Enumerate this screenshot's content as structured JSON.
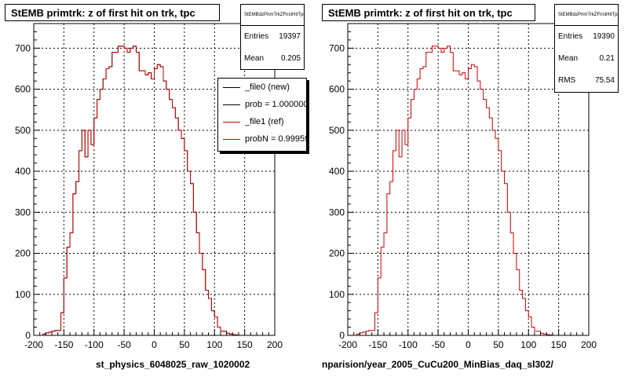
{
  "chart_data": [
    {
      "type": "line",
      "title": "StEMB primtrk: z of first hit on trk, tpc",
      "xlabel": "st_physics_6048025_raw_1020002",
      "ylabel": "",
      "xlim": [
        -200,
        200
      ],
      "ylim": [
        0,
        760
      ],
      "x_ticks": [
        -200,
        -150,
        -100,
        -50,
        0,
        50,
        100,
        150,
        200
      ],
      "y_ticks": [
        0,
        100,
        200,
        300,
        400,
        500,
        600,
        700
      ],
      "grid": true,
      "stats": {
        "name": "StEMBdzPrimTrkZFirstHitTpc",
        "entries_label": "Entries",
        "entries": "19397",
        "mean_label": "Mean",
        "mean": "0.205"
      },
      "legend": {
        "position": "top-right",
        "entries": [
          {
            "label": "_file0 (new)",
            "color": "#000000"
          },
          {
            "label": "prob = 1.000000",
            "color": "#000000"
          },
          {
            "label": "_file1 (ref)",
            "color": "#cc0000"
          },
          {
            "label": "probN = 0.999593",
            "color": "#cc0000"
          }
        ]
      },
      "bin_edges": [
        -185,
        -180,
        -175,
        -170,
        -165,
        -160,
        -155,
        -150,
        -145,
        -140,
        -135,
        -130,
        -125,
        -120,
        -115,
        -110,
        -105,
        -100,
        -95,
        -90,
        -85,
        -80,
        -75,
        -70,
        -65,
        -60,
        -55,
        -50,
        -45,
        -40,
        -35,
        -30,
        -25,
        -20,
        -15,
        -10,
        -5,
        0,
        5,
        10,
        15,
        20,
        25,
        30,
        35,
        40,
        45,
        50,
        55,
        60,
        65,
        70,
        75,
        80,
        85,
        90,
        95,
        100,
        105,
        110,
        115,
        120,
        125,
        130,
        135,
        140,
        145,
        150,
        155,
        160,
        165,
        170,
        175,
        180,
        185
      ],
      "series": [
        {
          "color": "#000000",
          "values": [
            3,
            6,
            8,
            10,
            12,
            12,
            55,
            140,
            215,
            250,
            345,
            375,
            450,
            500,
            435,
            500,
            465,
            530,
            575,
            600,
            625,
            650,
            655,
            690,
            690,
            705,
            705,
            700,
            690,
            700,
            705,
            690,
            645,
            645,
            635,
            640,
            625,
            650,
            660,
            655,
            620,
            600,
            575,
            555,
            530,
            500,
            480,
            450,
            400,
            370,
            300,
            250,
            200,
            160,
            110,
            90,
            60,
            45,
            20,
            10,
            10,
            5,
            3,
            2,
            1,
            0,
            0,
            0,
            0,
            0,
            0,
            0,
            0,
            0
          ]
        },
        {
          "color": "#cc0000",
          "values": [
            3,
            6,
            8,
            10,
            12,
            12,
            55,
            140,
            215,
            250,
            345,
            375,
            450,
            500,
            435,
            500,
            465,
            530,
            575,
            600,
            625,
            650,
            655,
            690,
            690,
            705,
            705,
            700,
            690,
            700,
            705,
            690,
            645,
            645,
            635,
            640,
            625,
            650,
            660,
            655,
            620,
            600,
            575,
            555,
            530,
            500,
            480,
            450,
            400,
            370,
            300,
            250,
            200,
            160,
            110,
            90,
            60,
            45,
            20,
            10,
            10,
            5,
            3,
            2,
            1,
            0,
            0,
            0,
            0,
            0,
            0,
            0,
            0,
            0
          ]
        }
      ]
    },
    {
      "type": "line",
      "title": "StEMB primtrk: z of first hit on trk, tpc",
      "xlabel": "nparision/year_2005_CuCu200_MinBias_daq_sl302/",
      "ylabel": "",
      "xlim": [
        -200,
        200
      ],
      "ylim": [
        0,
        760
      ],
      "x_ticks": [
        -200,
        -150,
        -100,
        -50,
        0,
        50,
        100,
        150,
        200
      ],
      "y_ticks": [
        0,
        100,
        200,
        300,
        400,
        500,
        600,
        700
      ],
      "grid": true,
      "stats": {
        "name": "StEMBdzPrimTrkZFirstHitTpc",
        "entries_label": "Entries",
        "entries": "19390",
        "mean_label": "Mean",
        "mean": "0.21",
        "rms_label": "RMS",
        "rms": "75.54"
      },
      "bin_edges": [
        -185,
        -180,
        -175,
        -170,
        -165,
        -160,
        -155,
        -150,
        -145,
        -140,
        -135,
        -130,
        -125,
        -120,
        -115,
        -110,
        -105,
        -100,
        -95,
        -90,
        -85,
        -80,
        -75,
        -70,
        -65,
        -60,
        -55,
        -50,
        -45,
        -40,
        -35,
        -30,
        -25,
        -20,
        -15,
        -10,
        -5,
        0,
        5,
        10,
        15,
        20,
        25,
        30,
        35,
        40,
        45,
        50,
        55,
        60,
        65,
        70,
        75,
        80,
        85,
        90,
        95,
        100,
        105,
        110,
        115,
        120,
        125,
        130,
        135,
        140,
        145,
        150,
        155,
        160,
        165,
        170,
        175,
        180,
        185
      ],
      "series": [
        {
          "color": "#cc0000",
          "values": [
            3,
            6,
            8,
            10,
            12,
            12,
            55,
            140,
            215,
            250,
            345,
            375,
            450,
            500,
            435,
            500,
            465,
            530,
            575,
            600,
            625,
            650,
            655,
            690,
            690,
            705,
            705,
            700,
            690,
            700,
            705,
            690,
            645,
            645,
            635,
            640,
            625,
            650,
            660,
            655,
            620,
            600,
            575,
            555,
            530,
            500,
            480,
            450,
            400,
            370,
            300,
            250,
            200,
            160,
            110,
            90,
            60,
            45,
            20,
            10,
            10,
            5,
            3,
            2,
            1,
            0,
            0,
            0,
            0,
            0,
            0,
            0,
            0,
            0
          ]
        }
      ]
    }
  ]
}
